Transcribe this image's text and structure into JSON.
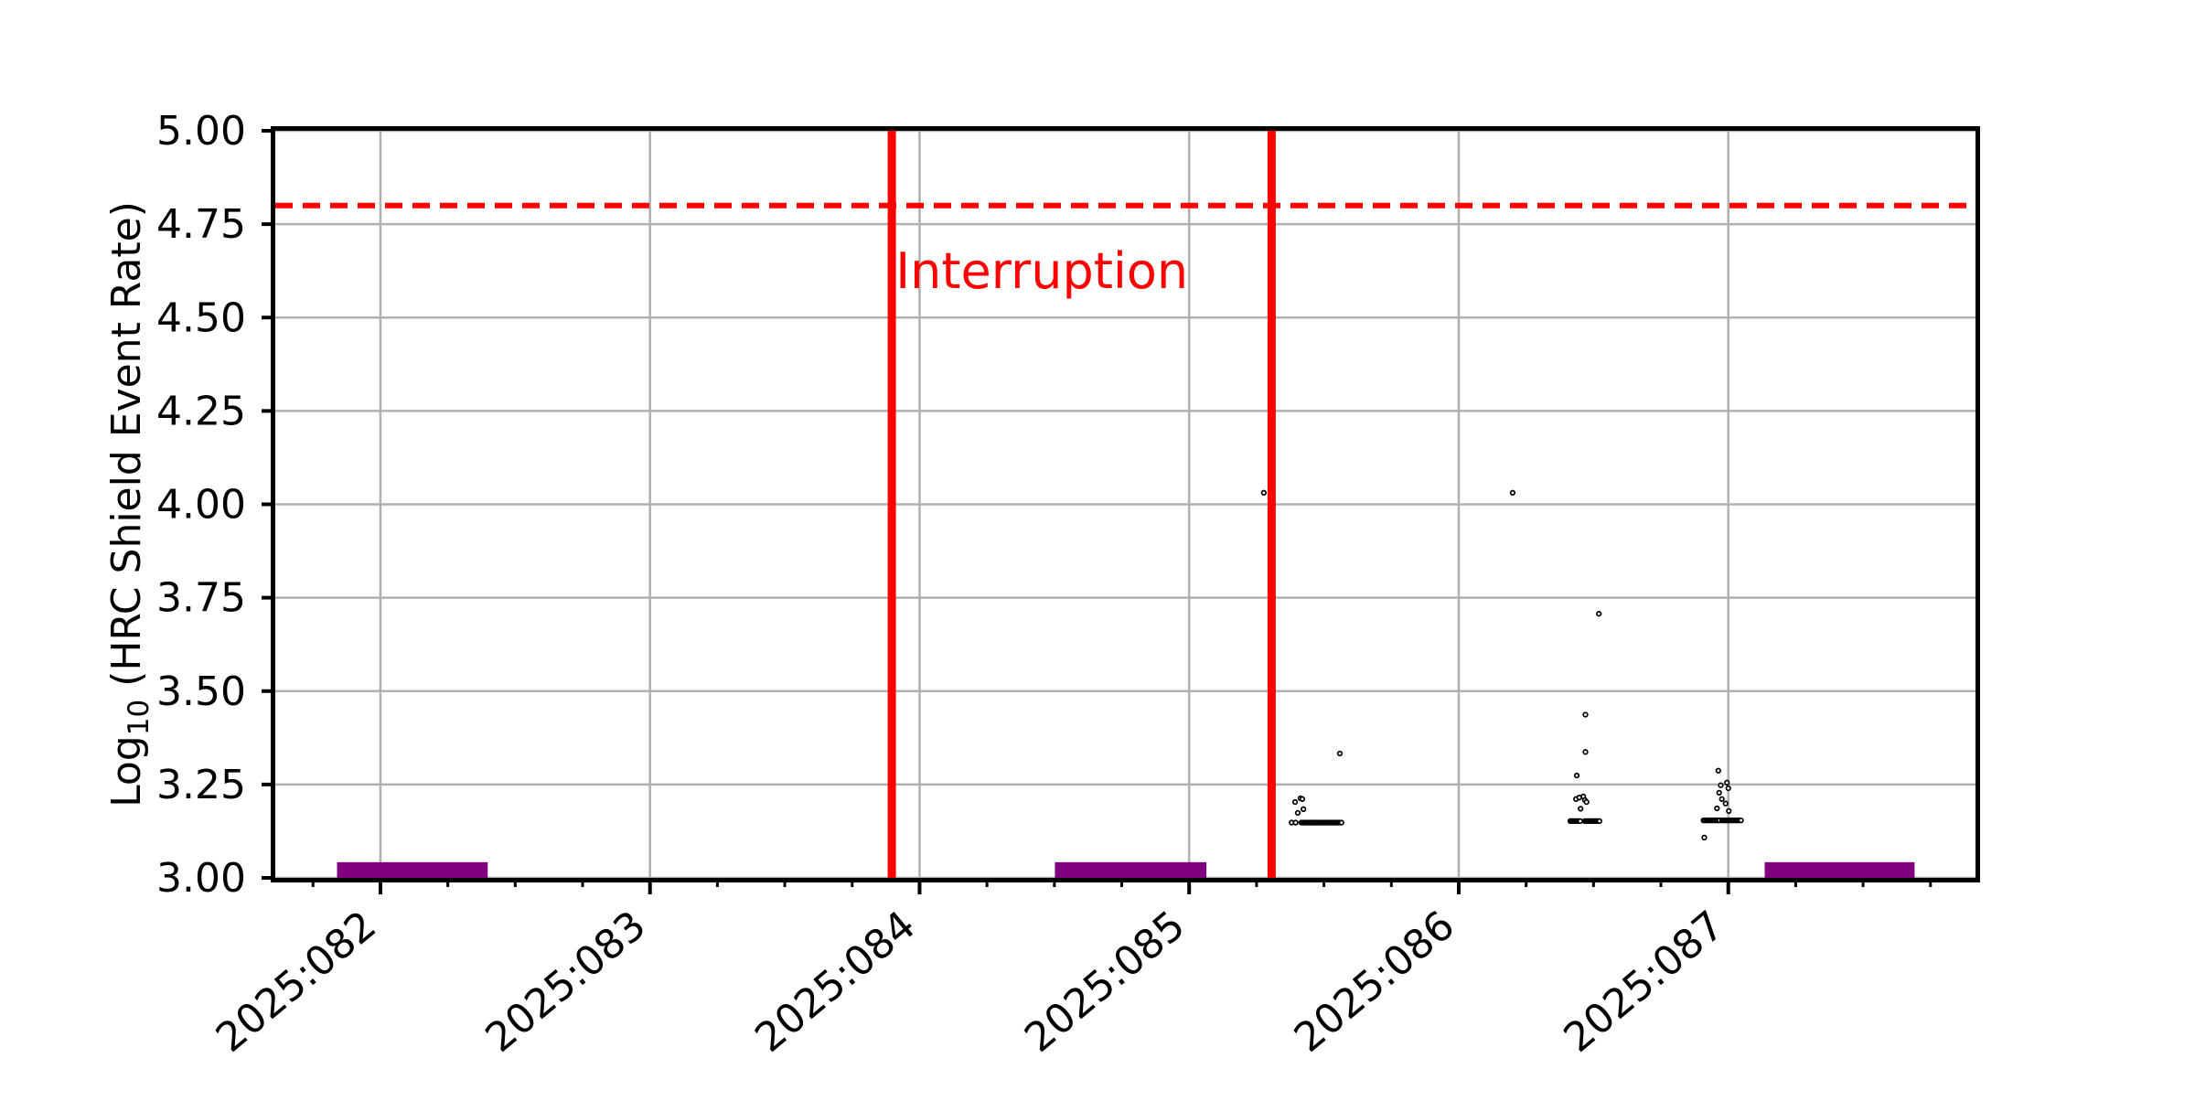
{
  "page": {
    "background": "#ffffff"
  },
  "chart_data": {
    "type": "scatter",
    "title": "",
    "xlabel": "",
    "ylabel": "Log10 (HRC Shield Event Rate)",
    "ylabel_parts": {
      "prefix": "Log",
      "subscript": "10",
      "suffix": " (HRC Shield Event Rate)"
    },
    "xlim": [
      81.61,
      87.917
    ],
    "ylim": [
      3.0,
      5.0
    ],
    "grid": true,
    "grid_color": "#b0b0b0",
    "x_unit": "day of year 2025",
    "x_major_ticks": [
      {
        "value": 82,
        "label": "2025:082"
      },
      {
        "value": 83,
        "label": "2025:083"
      },
      {
        "value": 84,
        "label": "2025:084"
      },
      {
        "value": 85,
        "label": "2025:085"
      },
      {
        "value": 86,
        "label": "2025:086"
      },
      {
        "value": 87,
        "label": "2025:087"
      }
    ],
    "x_minor_step": 0.25,
    "y_ticks": [
      {
        "value": 3.0,
        "label": "3.00"
      },
      {
        "value": 3.25,
        "label": "3.25"
      },
      {
        "value": 3.5,
        "label": "3.50"
      },
      {
        "value": 3.75,
        "label": "3.75"
      },
      {
        "value": 4.0,
        "label": "4.00"
      },
      {
        "value": 4.25,
        "label": "4.25"
      },
      {
        "value": 4.5,
        "label": "4.50"
      },
      {
        "value": 4.75,
        "label": "4.75"
      },
      {
        "value": 5.0,
        "label": "5.00"
      }
    ],
    "threshold_line": {
      "y": 4.8,
      "color": "#ff0000",
      "style": "dashed"
    },
    "interruption_vlines": [
      {
        "x": 83.897
      },
      {
        "x": 85.306
      }
    ],
    "vline_color": "#ff0000",
    "annotation": {
      "text": "Interruption",
      "x": 83.911,
      "y_baseline": 4.579,
      "color": "#ff0000"
    },
    "radzone_bars": [
      {
        "x1": 81.839,
        "x2": 82.398
      },
      {
        "x1": 84.502,
        "x2": 85.064
      },
      {
        "x1": 87.135,
        "x2": 87.691
      }
    ],
    "bar_color": "#800080",
    "bar_y1": 3.0,
    "bar_y2": 3.042,
    "marker": {
      "shape": "open-circle",
      "color": "#000000"
    },
    "points": [
      [
        85.277,
        4.031
      ],
      [
        85.559,
        3.333
      ],
      [
        85.38,
        3.148
      ],
      [
        85.395,
        3.148
      ],
      [
        85.393,
        3.203
      ],
      [
        85.413,
        3.213
      ],
      [
        85.42,
        3.211
      ],
      [
        85.403,
        3.174
      ],
      [
        85.424,
        3.184
      ],
      [
        86.2,
        4.031
      ],
      [
        86.52,
        3.707
      ],
      [
        86.47,
        3.437
      ],
      [
        86.47,
        3.337
      ],
      [
        86.438,
        3.274
      ],
      [
        86.435,
        3.211
      ],
      [
        86.447,
        3.215
      ],
      [
        86.462,
        3.218
      ],
      [
        86.468,
        3.208
      ],
      [
        86.474,
        3.203
      ],
      [
        86.452,
        3.185
      ],
      [
        86.963,
        3.287
      ],
      [
        86.972,
        3.248
      ],
      [
        86.995,
        3.255
      ],
      [
        87.0,
        3.24
      ],
      [
        86.966,
        3.228
      ],
      [
        86.976,
        3.211
      ],
      [
        86.99,
        3.199
      ],
      [
        86.958,
        3.186
      ],
      [
        87.002,
        3.179
      ],
      [
        86.911,
        3.108
      ]
    ],
    "dense_segments": [
      {
        "x1": 85.416,
        "x2": 85.565,
        "y": 3.148,
        "n": 28
      },
      {
        "x1": 86.414,
        "x2": 86.451,
        "y": 3.152,
        "n": 9
      },
      {
        "x1": 86.468,
        "x2": 86.522,
        "y": 3.152,
        "n": 12
      },
      {
        "x1": 86.908,
        "x2": 86.968,
        "y": 3.154,
        "n": 13
      },
      {
        "x1": 86.977,
        "x2": 87.047,
        "y": 3.154,
        "n": 15
      }
    ]
  }
}
